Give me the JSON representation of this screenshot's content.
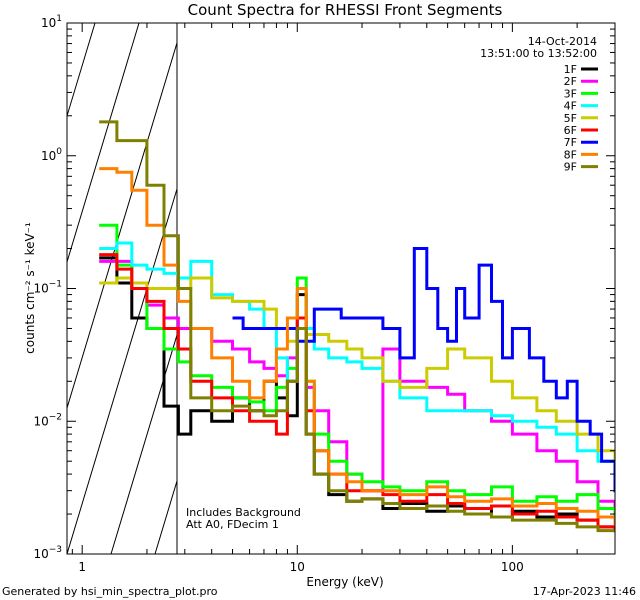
{
  "chart_data": {
    "type": "line",
    "subtype": "step",
    "title": "Count Spectra for RHESSI Front Segments",
    "xlabel": "Energy (keV)",
    "ylabel": "counts cm⁻² s⁻¹ keV⁻¹",
    "xscale": "log",
    "yscale": "log",
    "xlim": [
      0.85,
      300
    ],
    "ylim": [
      0.001,
      10
    ],
    "x_ticks": [
      {
        "value": 1,
        "label": "1"
      },
      {
        "value": 10,
        "label": "10"
      },
      {
        "value": 100,
        "label": "100"
      }
    ],
    "y_ticks": [
      {
        "value": 0.001,
        "base": "10",
        "exp": "−3"
      },
      {
        "value": 0.01,
        "base": "10",
        "exp": "−2"
      },
      {
        "value": 0.1,
        "base": "10",
        "exp": "−1"
      },
      {
        "value": 1,
        "base": "10",
        "exp": "0"
      },
      {
        "value": 10,
        "base": "10",
        "exp": "1"
      }
    ],
    "date": "14-Oct-2014",
    "time_range": "13:51:00 to 13:52:00",
    "hatched_below_keV": 3,
    "annotation_lines": [
      "Includes Background",
      "Att A0, FDecim 1"
    ],
    "legend_position": "top-right",
    "series": [
      {
        "name": "1F",
        "color": "#000000",
        "x": [
          1.2,
          1.45,
          1.7,
          2,
          2.4,
          2.8,
          3.2,
          4,
          5,
          6,
          7,
          8,
          9,
          10,
          11,
          12,
          14,
          17,
          20,
          25,
          30,
          40,
          50,
          60,
          80,
          100,
          130,
          160,
          200,
          250,
          300
        ],
        "y": [
          0.17,
          0.11,
          0.06,
          0.05,
          0.013,
          0.008,
          0.012,
          0.01,
          0.015,
          0.012,
          0.02,
          0.015,
          0.011,
          0.09,
          0.008,
          0.004,
          0.0028,
          0.0025,
          0.0026,
          0.0022,
          0.0024,
          0.0021,
          0.0023,
          0.0022,
          0.0019,
          0.0021,
          0.0019,
          0.002,
          0.0018,
          0.0016,
          0.0015
        ]
      },
      {
        "name": "2F",
        "color": "#ff00ff",
        "x": [
          1.2,
          1.45,
          1.7,
          2,
          2.4,
          2.8,
          3.2,
          4,
          5,
          6,
          7,
          8,
          9,
          10,
          11,
          12,
          14,
          17,
          20,
          25,
          30,
          40,
          50,
          60,
          80,
          100,
          130,
          160,
          200,
          250,
          300
        ],
        "y": [
          0.16,
          0.16,
          0.1,
          0.075,
          0.06,
          0.05,
          0.05,
          0.04,
          0.035,
          0.028,
          0.025,
          0.022,
          0.03,
          0.06,
          0.018,
          0.012,
          0.007,
          0.004,
          0.003,
          0.035,
          0.02,
          0.018,
          0.016,
          0.012,
          0.01,
          0.008,
          0.006,
          0.005,
          0.0035,
          0.0025,
          0.002
        ]
      },
      {
        "name": "3F",
        "color": "#00ff00",
        "x": [
          1.2,
          1.45,
          1.7,
          2,
          2.4,
          2.8,
          3.2,
          4,
          5,
          6,
          7,
          8,
          9,
          10,
          11,
          12,
          14,
          17,
          20,
          25,
          30,
          40,
          50,
          60,
          80,
          100,
          130,
          160,
          200,
          250,
          300
        ],
        "y": [
          0.3,
          0.15,
          0.1,
          0.05,
          0.035,
          0.028,
          0.022,
          0.018,
          0.015,
          0.014,
          0.012,
          0.018,
          0.025,
          0.12,
          0.02,
          0.008,
          0.005,
          0.004,
          0.0035,
          0.0032,
          0.003,
          0.0035,
          0.003,
          0.0028,
          0.0032,
          0.0025,
          0.0027,
          0.0025,
          0.0028,
          0.0022,
          0.002
        ]
      },
      {
        "name": "4F",
        "color": "#00ffff",
        "x": [
          1.2,
          1.45,
          1.7,
          2,
          2.4,
          2.8,
          3.2,
          4,
          5,
          6,
          7,
          8,
          9,
          10,
          11,
          12,
          14,
          17,
          20,
          25,
          30,
          40,
          50,
          60,
          80,
          100,
          130,
          160,
          200,
          250,
          300
        ],
        "y": [
          0.2,
          0.22,
          0.15,
          0.14,
          0.13,
          0.12,
          0.16,
          0.09,
          0.08,
          0.07,
          0.05,
          0.03,
          0.02,
          0.06,
          0.05,
          0.035,
          0.03,
          0.028,
          0.025,
          0.02,
          0.015,
          0.012,
          0.012,
          0.012,
          0.011,
          0.01,
          0.009,
          0.008,
          0.006,
          0.005,
          0.004
        ]
      },
      {
        "name": "5F",
        "color": "#cccc00",
        "x": [
          1.2,
          1.45,
          1.7,
          2,
          2.4,
          2.8,
          3.2,
          4,
          5,
          6,
          7,
          8,
          9,
          10,
          11,
          12,
          14,
          17,
          20,
          25,
          30,
          40,
          50,
          60,
          80,
          100,
          130,
          160,
          200,
          250,
          300
        ],
        "y": [
          0.11,
          0.12,
          0.11,
          0.1,
          0.1,
          0.1,
          0.12,
          0.085,
          0.08,
          0.08,
          0.07,
          0.05,
          0.04,
          0.05,
          0.045,
          0.045,
          0.04,
          0.035,
          0.03,
          0.02,
          0.018,
          0.025,
          0.035,
          0.03,
          0.02,
          0.015,
          0.012,
          0.01,
          0.008,
          0.006,
          0.005
        ]
      },
      {
        "name": "6F",
        "color": "#ff0000",
        "x": [
          1.2,
          1.45,
          1.7,
          2,
          2.4,
          2.8,
          3.2,
          4,
          5,
          6,
          7,
          8,
          9,
          10,
          11,
          12,
          14,
          17,
          20,
          25,
          30,
          40,
          50,
          60,
          80,
          100,
          130,
          160,
          200,
          250,
          300
        ],
        "y": [
          0.18,
          0.14,
          0.1,
          0.08,
          0.05,
          0.035,
          0.02,
          0.015,
          0.012,
          0.01,
          0.01,
          0.008,
          0.02,
          0.06,
          0.012,
          0.006,
          0.004,
          0.003,
          0.003,
          0.0028,
          0.0025,
          0.0028,
          0.0024,
          0.0022,
          0.0023,
          0.002,
          0.0021,
          0.0019,
          0.0018,
          0.0016,
          0.0015
        ]
      },
      {
        "name": "7F",
        "color": "#0000ff",
        "x": [
          5,
          5.6,
          6,
          10,
          12,
          14,
          16,
          20,
          25,
          30,
          35,
          40,
          45,
          50,
          55,
          60,
          70,
          80,
          90,
          100,
          120,
          140,
          160,
          180,
          200,
          230,
          260,
          300
        ],
        "y": [
          0.06,
          0.05,
          0.05,
          0.04,
          0.07,
          0.07,
          0.06,
          0.06,
          0.05,
          0.03,
          0.2,
          0.1,
          0.05,
          0.04,
          0.1,
          0.06,
          0.15,
          0.08,
          0.03,
          0.05,
          0.03,
          0.02,
          0.015,
          0.02,
          0.01,
          0.008,
          0.005,
          0.003
        ]
      },
      {
        "name": "8F",
        "color": "#ff8000",
        "x": [
          1.2,
          1.45,
          1.7,
          2,
          2.4,
          2.8,
          3.2,
          4,
          5,
          6,
          7,
          8,
          9,
          10,
          11,
          12,
          14,
          17,
          20,
          25,
          30,
          40,
          50,
          60,
          80,
          100,
          130,
          160,
          200,
          250,
          300
        ],
        "y": [
          0.8,
          0.75,
          0.55,
          0.3,
          0.15,
          0.08,
          0.05,
          0.03,
          0.02,
          0.015,
          0.02,
          0.035,
          0.06,
          0.1,
          0.02,
          0.006,
          0.004,
          0.0035,
          0.003,
          0.003,
          0.0028,
          0.0032,
          0.0027,
          0.0025,
          0.0026,
          0.0023,
          0.0024,
          0.0022,
          0.0021,
          0.0019,
          0.0017
        ]
      },
      {
        "name": "9F",
        "color": "#808000",
        "x": [
          1.2,
          1.45,
          1.7,
          2,
          2.4,
          2.8,
          3.2,
          4,
          5,
          6,
          7,
          8,
          9,
          10,
          11,
          12,
          14,
          17,
          20,
          25,
          30,
          40,
          50,
          60,
          80,
          100,
          130,
          160,
          200,
          250,
          300
        ],
        "y": [
          1.8,
          1.3,
          1.3,
          0.6,
          0.25,
          0.1,
          0.015,
          0.012,
          0.013,
          0.012,
          0.011,
          0.012,
          0.02,
          0.05,
          0.008,
          0.004,
          0.003,
          0.0025,
          0.0026,
          0.0024,
          0.0022,
          0.0023,
          0.0021,
          0.002,
          0.0019,
          0.0018,
          0.0018,
          0.0017,
          0.0016,
          0.0015,
          0.0015
        ]
      }
    ]
  },
  "footer": {
    "left": "Generated by hsi_min_spectra_plot.pro",
    "right": "17-Apr-2023 11:46"
  }
}
